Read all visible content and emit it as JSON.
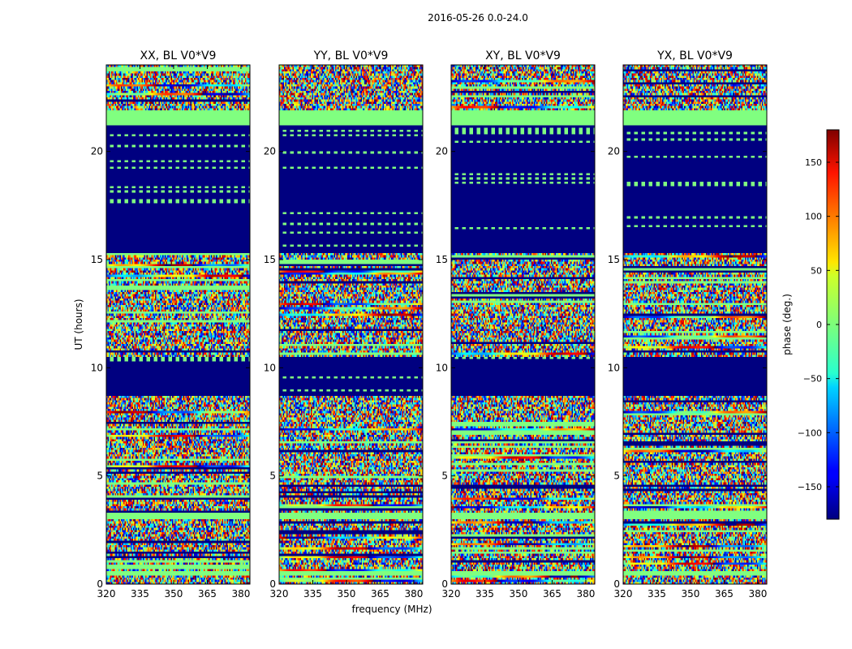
{
  "figure": {
    "suptitle": "2016-05-26 0.0-24.0",
    "xlabel": "frequency (MHz)",
    "ylabel": "UT (hours)",
    "colorbar_label": "phase (deg.)",
    "colormap": "jet"
  },
  "chart_data": {
    "type": "heatmap",
    "title": "2016-05-26 0.0-24.0",
    "xlabel": "frequency (MHz)",
    "ylabel": "UT (hours)",
    "xlim": [
      320,
      384
    ],
    "ylim": [
      0,
      24
    ],
    "x_ticks": [
      320,
      335,
      350,
      365,
      380
    ],
    "y_ticks": [
      0,
      5,
      10,
      15,
      20
    ],
    "colorbar": {
      "label": "phase (deg.)",
      "range": [
        -180,
        180
      ],
      "ticks": [
        -150,
        -100,
        -50,
        0,
        50,
        100,
        150
      ],
      "tick_labels": [
        "−150",
        "−100",
        "−50",
        "0",
        "50",
        "100",
        "150"
      ]
    },
    "panels": [
      {
        "name": "XX, BL V0*V9",
        "pol": "XX",
        "seed": 11
      },
      {
        "name": "YY, BL V0*V9",
        "pol": "YY",
        "seed": 23
      },
      {
        "name": "XY, BL V0*V9",
        "pol": "XY",
        "seed": 37
      },
      {
        "name": "YX, BL V0*V9",
        "pol": "YX",
        "seed": 41
      }
    ],
    "masked_bands_ut": [
      [
        8.7,
        10.5
      ],
      [
        15.3,
        21.2
      ]
    ],
    "flat_green_bands_ut": [
      [
        21.2,
        21.9
      ],
      [
        3.0,
        3.3
      ],
      [
        0.4,
        0.6
      ]
    ]
  }
}
